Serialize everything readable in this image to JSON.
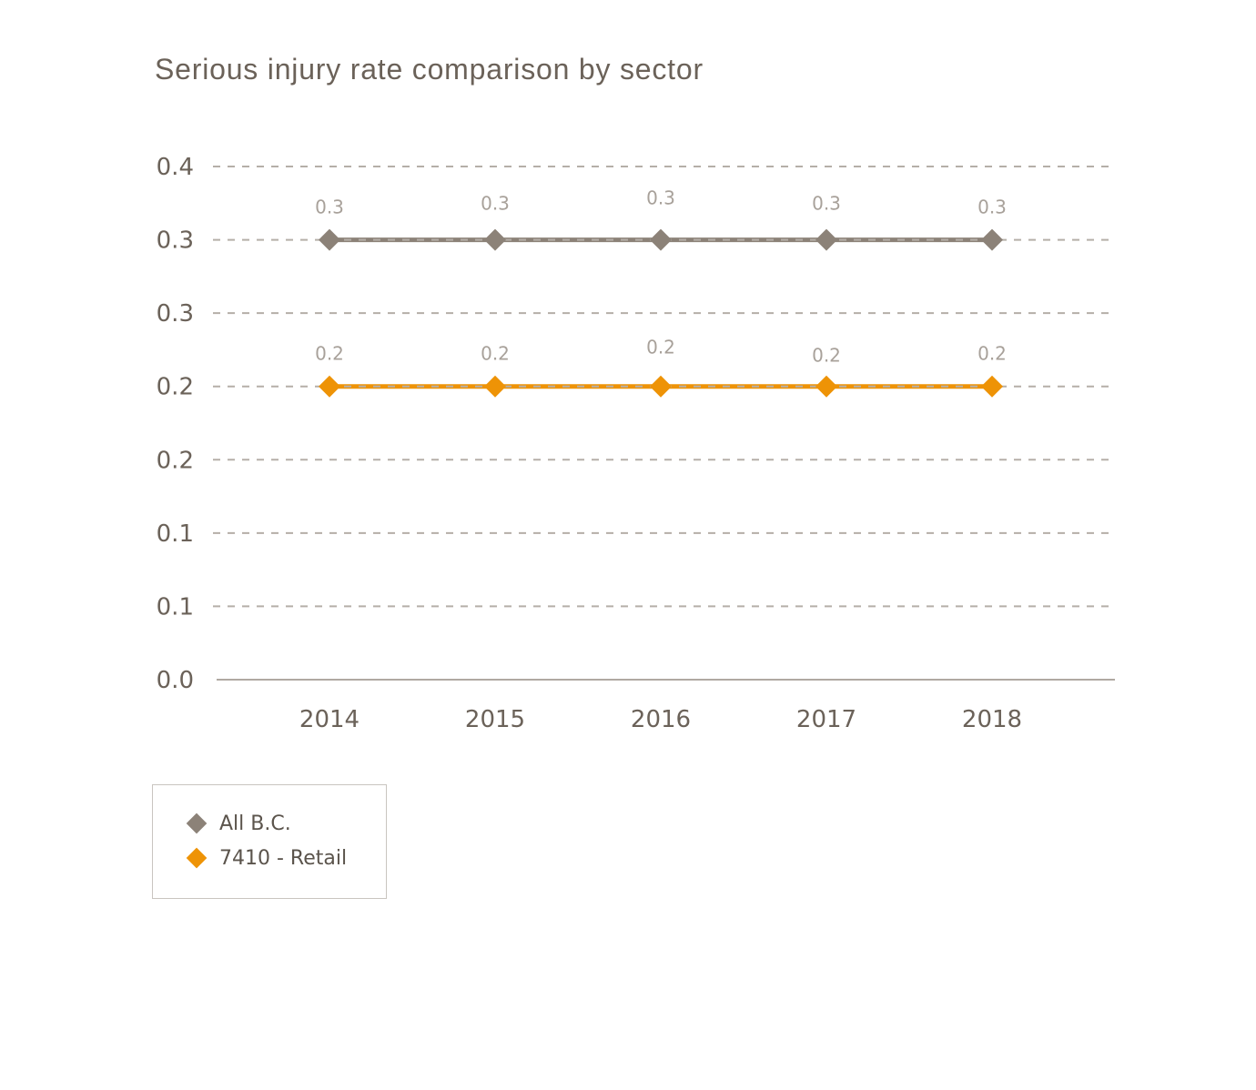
{
  "title": "Serious injury rate comparison by sector",
  "chart_data": {
    "type": "line",
    "title": "Serious injury rate comparison by sector",
    "categories": [
      "2014",
      "2015",
      "2016",
      "2017",
      "2018"
    ],
    "series": [
      {
        "name": "All B.C.",
        "values": [
          0.3,
          0.3,
          0.3,
          0.3,
          0.3
        ],
        "point_labels": [
          "0.3",
          "0.3",
          "0.3",
          "0.3",
          "0.3"
        ],
        "color": "#8c8278",
        "marker": "diamond",
        "label_dy": [
          -36,
          -40,
          -46,
          -40,
          -36
        ]
      },
      {
        "name": "7410 - Retail",
        "values": [
          0.2,
          0.2,
          0.2,
          0.2,
          0.2
        ],
        "point_labels": [
          "0.2",
          "0.2",
          "0.2",
          "0.2",
          "0.2"
        ],
        "color": "#ee9306",
        "marker": "diamond",
        "label_dy": [
          -36,
          -36,
          -43,
          -34,
          -36
        ]
      }
    ],
    "y_ticks": [
      {
        "value": 0.35,
        "label": "0.4"
      },
      {
        "value": 0.3,
        "label": "0.3"
      },
      {
        "value": 0.25,
        "label": "0.3"
      },
      {
        "value": 0.2,
        "label": "0.2"
      },
      {
        "value": 0.15,
        "label": "0.2"
      },
      {
        "value": 0.1,
        "label": "0.1"
      },
      {
        "value": 0.05,
        "label": "0.1"
      },
      {
        "value": 0.0,
        "label": "0.0"
      }
    ],
    "ylim": [
      0,
      0.35
    ],
    "xlabel": "",
    "ylabel": "",
    "grid": "horizontal-dashed",
    "legend_position": "bottom-left"
  },
  "legend": {
    "items": [
      {
        "label": "All B.C.",
        "color": "#8c8278"
      },
      {
        "label": "7410 - Retail",
        "color": "#ee9306"
      }
    ]
  },
  "colors": {
    "background": "#ffffff",
    "title_text": "#6b6259",
    "axis_text": "#6b6259",
    "gridline": "#b5afa8",
    "axis_line": "#b0a9a2",
    "data_label": "#a8a19a",
    "legend_border": "#c9c5c0",
    "legend_text": "#5b544c"
  }
}
